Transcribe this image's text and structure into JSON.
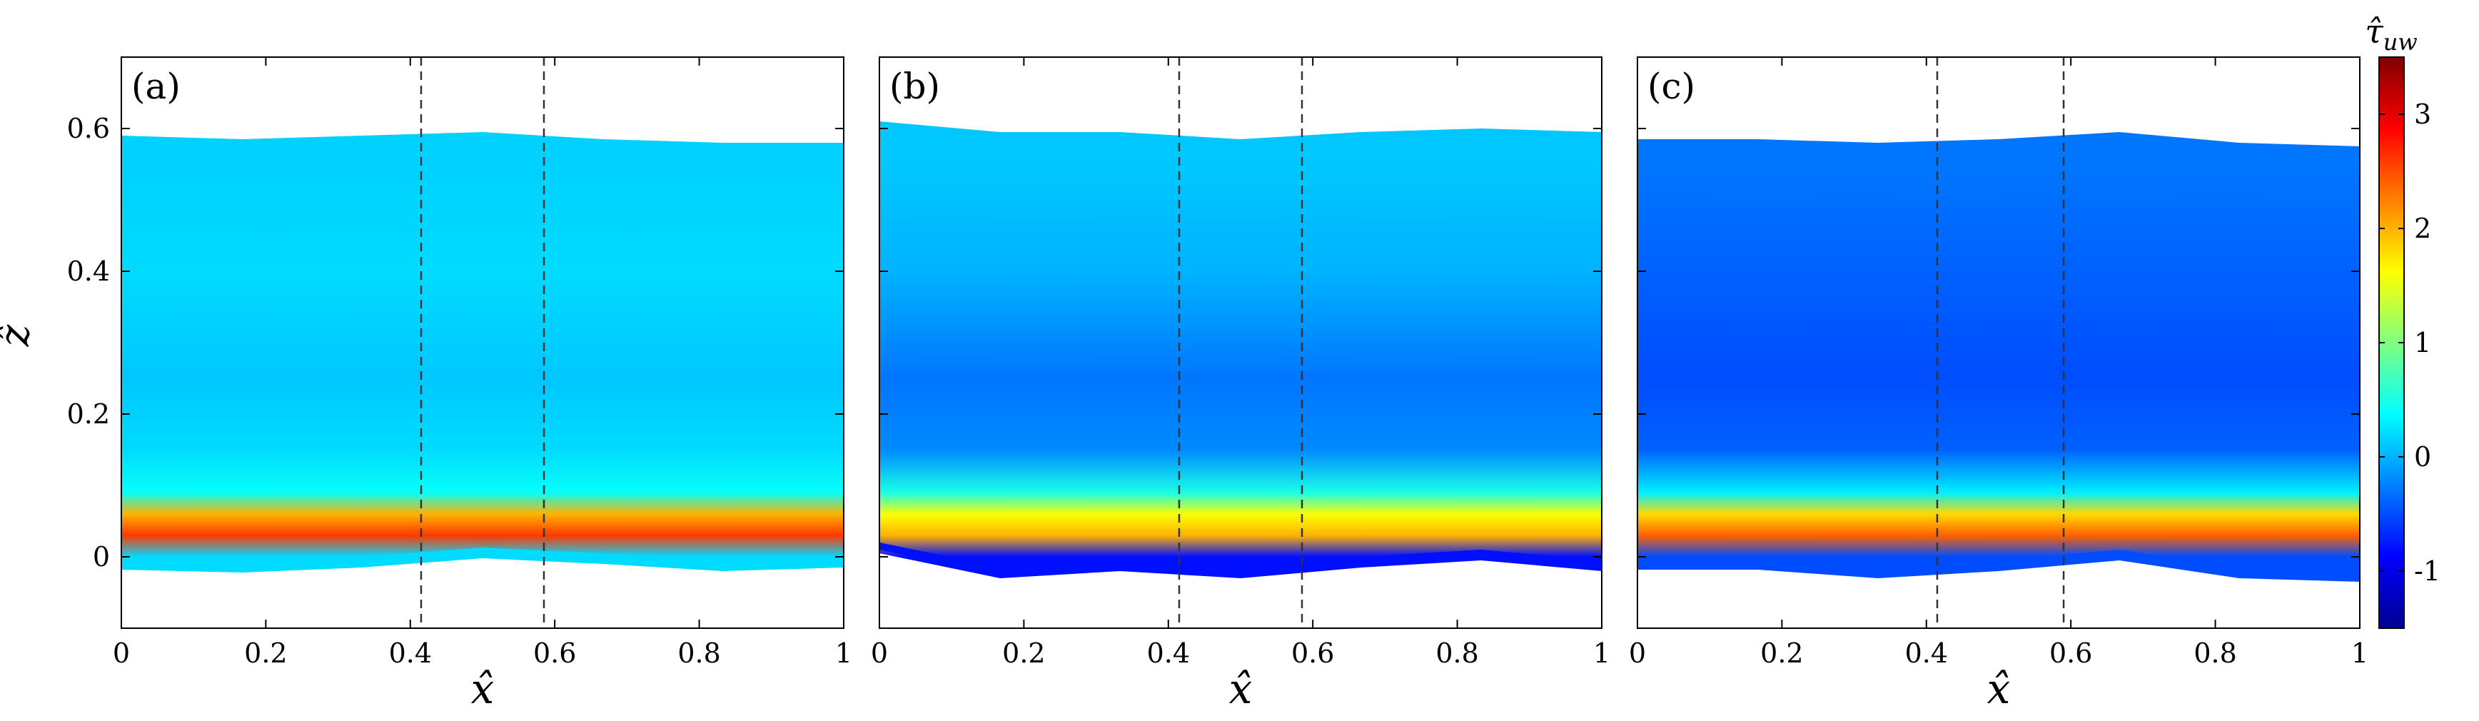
{
  "chart_data": {
    "type": "heatmap",
    "colorbar": {
      "label": "τ̂uw",
      "label_base": "τ̂",
      "label_sub": "uw",
      "range": [
        -1.5,
        3.5
      ],
      "ticks": [
        -1,
        0,
        1,
        2,
        3
      ],
      "tick_labels": [
        "-1",
        "0",
        "1",
        "2",
        "3"
      ],
      "colormap": "jet",
      "colormap_colors": [
        "#00008f",
        "#0000ff",
        "#0080ff",
        "#00ffff",
        "#80ff80",
        "#ffff00",
        "#ff8000",
        "#ff0000",
        "#800000"
      ]
    },
    "x_axis": {
      "label": "x̂",
      "range": [
        0,
        1
      ],
      "ticks": [
        0,
        0.2,
        0.4,
        0.6,
        0.8,
        1
      ],
      "tick_labels": [
        "0",
        "0.2",
        "0.4",
        "0.6",
        "0.8",
        "1"
      ]
    },
    "y_axis": {
      "label": "ẑ",
      "range": [
        -0.1,
        0.7
      ],
      "ticks": [
        0,
        0.2,
        0.4,
        0.6
      ],
      "tick_labels": [
        "0",
        "0.2",
        "0.4",
        "0.6"
      ]
    },
    "panels": [
      {
        "label": "(a)",
        "x": [
          0,
          0.167,
          0.333,
          0.5,
          0.667,
          0.833,
          1
        ],
        "bottom": [
          -0.018,
          -0.022,
          -0.015,
          -0.002,
          -0.01,
          -0.02,
          -0.015
        ],
        "top": [
          0.59,
          0.585,
          0.59,
          0.595,
          0.585,
          0.58,
          0.58
        ],
        "z": [
          0.0,
          0.03,
          0.06,
          0.09,
          0.15,
          0.25,
          0.4,
          0.55
        ],
        "values": [
          0.2,
          2.6,
          2.0,
          0.4,
          0.2,
          0.1,
          0.2,
          0.15
        ],
        "dashed_lines": [
          0.415,
          0.585
        ]
      },
      {
        "label": "(b)",
        "x": [
          0,
          0.167,
          0.333,
          0.5,
          0.667,
          0.833,
          1
        ],
        "bottom": [
          0.005,
          -0.03,
          -0.02,
          -0.03,
          -0.015,
          -0.005,
          -0.02
        ],
        "top": [
          0.61,
          0.595,
          0.595,
          0.585,
          0.595,
          0.6,
          0.595
        ],
        "z": [
          0.0,
          0.03,
          0.06,
          0.09,
          0.15,
          0.25,
          0.4,
          0.55
        ],
        "values": [
          -0.8,
          2.0,
          1.6,
          0.5,
          -0.2,
          -0.3,
          0.0,
          0.1
        ],
        "dashed_lines": [
          0.415,
          0.585
        ]
      },
      {
        "label": "(c)",
        "x": [
          0,
          0.167,
          0.333,
          0.5,
          0.667,
          0.833,
          1
        ],
        "bottom": [
          -0.018,
          -0.018,
          -0.03,
          -0.02,
          -0.005,
          -0.03,
          -0.035
        ],
        "top": [
          0.585,
          0.585,
          0.58,
          0.585,
          0.595,
          0.58,
          0.575
        ],
        "z": [
          0.0,
          0.03,
          0.06,
          0.09,
          0.15,
          0.25,
          0.4,
          0.55
        ],
        "values": [
          -0.5,
          2.4,
          1.8,
          0.3,
          -0.4,
          -0.5,
          -0.4,
          -0.3
        ],
        "dashed_lines": [
          0.415,
          0.59
        ]
      }
    ]
  }
}
